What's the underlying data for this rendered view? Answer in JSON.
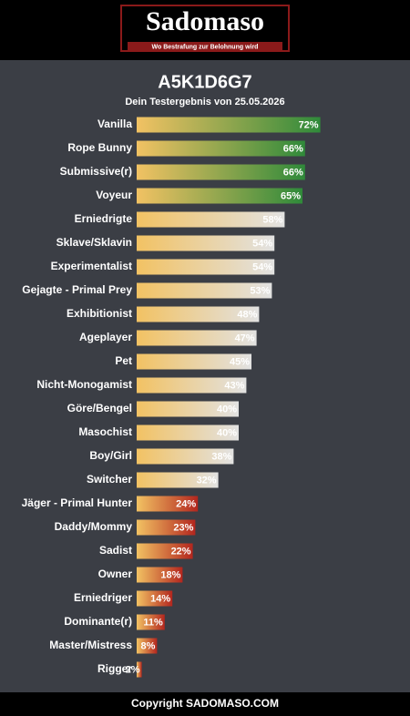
{
  "header": {
    "logo": "Sadomaso",
    "tagline": "Wo Bestrafung zur Belohnung wird"
  },
  "chart_data": {
    "type": "bar",
    "orientation": "horizontal",
    "title": "A5K1D6G7",
    "subtitle": "Dein Testergebnis von 25.05.2026",
    "categories": [
      "Vanilla",
      "Rope Bunny",
      "Submissive(r)",
      "Voyeur",
      "Erniedrigte",
      "Sklave/Sklavin",
      "Experimentalist",
      "Gejagte - Primal Prey",
      "Exhibitionist",
      "Ageplayer",
      "Pet",
      "Nicht-Monogamist",
      "Göre/Bengel",
      "Masochist",
      "Boy/Girl",
      "Switcher",
      "Jäger - Primal Hunter",
      "Daddy/Mommy",
      "Sadist",
      "Owner",
      "Erniedriger",
      "Dominante(r)",
      "Master/Mistress",
      "Rigger"
    ],
    "values": [
      72,
      66,
      66,
      65,
      58,
      54,
      54,
      53,
      48,
      47,
      45,
      43,
      40,
      40,
      38,
      32,
      24,
      23,
      22,
      18,
      14,
      11,
      8,
      2
    ],
    "value_labels": [
      "72%",
      "66%",
      "66%",
      "65%",
      "58%",
      "54%",
      "54%",
      "53%",
      "48%",
      "47%",
      "45%",
      "43%",
      "40%",
      "40%",
      "38%",
      "32%",
      "24%",
      "23%",
      "22%",
      "18%",
      "14%",
      "11%",
      "8%",
      "2%"
    ],
    "gradient_start": "#f2c263",
    "colors": [
      "#2f8a3a",
      "#2f8a3a",
      "#2f8a3a",
      "#2f8a3a",
      "#e2e2e2",
      "#e2e2e2",
      "#e2e2e2",
      "#e2e2e2",
      "#e2e2e2",
      "#e2e2e2",
      "#e2e2e2",
      "#e2e2e2",
      "#e2e2e2",
      "#e2e2e2",
      "#e2e2e2",
      "#e2e2e2",
      "#b3261e",
      "#b3261e",
      "#b3261e",
      "#b3261e",
      "#b3261e",
      "#b3261e",
      "#b3261e",
      "#b3261e"
    ]
  },
  "footer": {
    "text": "Copyright SADOMASO.COM"
  }
}
